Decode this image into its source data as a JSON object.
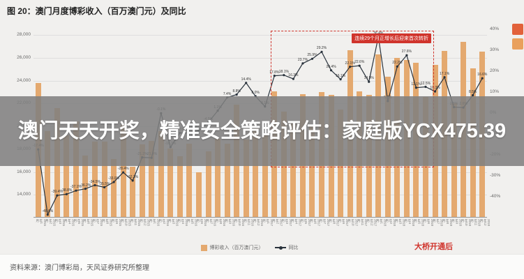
{
  "page": {
    "title": "图 20：澳门月度博彩收入（百万澳门元）及同比",
    "source": "资料来源：澳门博彩局，天风证券研究所整理",
    "overlay_text": "澳门天天开奖，精准安全策略评估：家庭版YCX475.39"
  },
  "annotations": {
    "dashed_box_label": "连续29个月正增长后迎来首次转折",
    "bridge_label": "大桥开通后"
  },
  "legend": {
    "items": [
      {
        "label": "博彩收入（百万澳门元）"
      },
      {
        "label": "同比"
      }
    ]
  },
  "colors": {
    "bar": "#E4A96F",
    "line": "#29323C",
    "accent_red": "#D0342C"
  },
  "chart_data": {
    "type": "bar",
    "title": "澳门月度博彩收入（百万澳门元）及同比",
    "categories": [
      "2015年1月",
      "2015年2月",
      "2015年3月",
      "2015年4月",
      "2015年5月",
      "2015年6月",
      "2015年7月",
      "2015年8月",
      "2015年9月",
      "2015年10月",
      "2015年11月",
      "2015年12月",
      "2016年1月",
      "2016年2月",
      "2016年3月",
      "2016年4月",
      "2016年5月",
      "2016年6月",
      "2016年7月",
      "2016年8月",
      "2016年9月",
      "2016年10月",
      "2016年11月",
      "2016年12月",
      "2017年1月",
      "2017年2月",
      "2017年3月",
      "2017年4月",
      "2017年5月",
      "2017年6月",
      "2017年7月",
      "2017年8月",
      "2017年9月",
      "2017年10月",
      "2017年11月",
      "2017年12月",
      "2018年1月",
      "2018年2月",
      "2018年3月",
      "2018年4月",
      "2018年5月",
      "2018年6月",
      "2018年7月",
      "2018年8月",
      "2018年9月",
      "2018年10月",
      "2018年11月",
      "2018年12月"
    ],
    "series": [
      {
        "name": "博彩收入（百万澳门元）",
        "type": "bar",
        "axis": "left",
        "color": "#E4A96F",
        "values": [
          23748,
          19542,
          21525,
          19167,
          20350,
          17360,
          18620,
          18621,
          17100,
          20062,
          16375,
          18343,
          18674,
          19518,
          17980,
          17340,
          18389,
          15885,
          17771,
          18837,
          18435,
          21811,
          18775,
          19743,
          19255,
          22992,
          21233,
          20164,
          22743,
          19992,
          22964,
          22675,
          21408,
          26630,
          23000,
          22695,
          26265,
          24312,
          25952,
          25727,
          25488,
          22490,
          25327,
          26559,
          21952,
          27328,
          24995,
          26468
        ]
      },
      {
        "name": "同比",
        "type": "line",
        "axis": "right",
        "color": "#29323C",
        "values": [
          -17.4,
          -48.6,
          -39.4,
          -38.8,
          -37.1,
          -36.2,
          -34.5,
          -35.5,
          -33.0,
          -28.4,
          -32.3,
          -21.2,
          -21.4,
          -0.1,
          -16.3,
          -9.5,
          -9.6,
          -8.5,
          -4.5,
          1.1,
          7.4,
          8.8,
          14.4,
          8.0,
          3.1,
          17.8,
          18.1,
          16.3,
          23.7,
          25.9,
          29.2,
          20.4,
          16.1,
          22.1,
          22.6,
          14.9,
          36.4,
          5.7,
          22.2,
          27.6,
          12.1,
          12.5,
          10.3,
          17.1,
          2.8,
          2.6,
          8.5,
          16.6
        ]
      }
    ],
    "left_axis": {
      "min": 12000,
      "max": 28500,
      "ticks": [
        {
          "value": 28000,
          "label": "28,000"
        },
        {
          "value": 26000,
          "label": "26,000"
        },
        {
          "value": 24000,
          "label": "24,000"
        },
        {
          "value": 22000,
          "label": "22,000"
        },
        {
          "value": 20000,
          "label": "20,000"
        },
        {
          "value": 18000,
          "label": "18,000"
        },
        {
          "value": 16000,
          "label": "16,000"
        },
        {
          "value": 14000,
          "label": "14,000"
        }
      ]
    },
    "right_axis": {
      "min": -50,
      "max": 40,
      "ticks": [
        {
          "value": 40,
          "label": "40%"
        },
        {
          "value": 30,
          "label": "30%"
        },
        {
          "value": 20,
          "label": "20%"
        },
        {
          "value": 10,
          "label": "10%"
        },
        {
          "value": 0,
          "label": "0%"
        },
        {
          "value": -10,
          "label": "-10%"
        },
        {
          "value": -20,
          "label": "-20%"
        },
        {
          "value": -30,
          "label": "-30%"
        },
        {
          "value": -40,
          "label": "-40%"
        }
      ]
    },
    "grid": true,
    "legend_position": "bottom"
  }
}
